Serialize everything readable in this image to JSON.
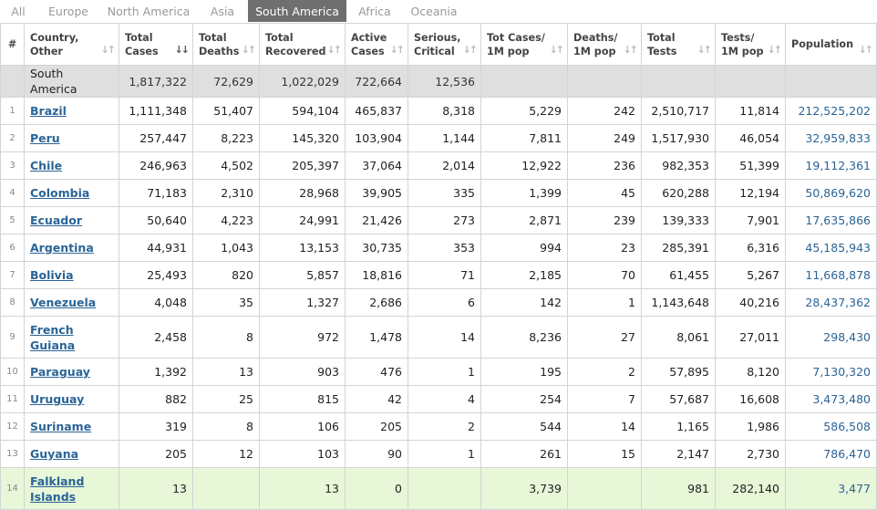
{
  "tabs": [
    {
      "label": "All",
      "name": "tab-all"
    },
    {
      "label": "Europe",
      "name": "tab-europe"
    },
    {
      "label": "North America",
      "name": "tab-north-america"
    },
    {
      "label": "Asia",
      "name": "tab-asia"
    },
    {
      "label": "South America",
      "name": "tab-south-america",
      "active": true
    },
    {
      "label": "Africa",
      "name": "tab-africa"
    },
    {
      "label": "Oceania",
      "name": "tab-oceania"
    }
  ],
  "columns": [
    {
      "lines": [
        "#"
      ],
      "sortable": false
    },
    {
      "lines": [
        "Country,",
        "Other"
      ],
      "sortable": true
    },
    {
      "lines": [
        "Total",
        "Cases"
      ],
      "sortable": true,
      "active_sort": true
    },
    {
      "lines": [
        "Total",
        "Deaths"
      ],
      "sortable": true
    },
    {
      "lines": [
        "Total",
        "Recovered"
      ],
      "sortable": true
    },
    {
      "lines": [
        "Active",
        "Cases"
      ],
      "sortable": true
    },
    {
      "lines": [
        "Serious,",
        "Critical"
      ],
      "sortable": true
    },
    {
      "lines": [
        "Tot Cases/",
        "1M pop"
      ],
      "sortable": true
    },
    {
      "lines": [
        "Deaths/",
        "1M pop"
      ],
      "sortable": true
    },
    {
      "lines": [
        "Total",
        "Tests"
      ],
      "sortable": true
    },
    {
      "lines": [
        "Tests/",
        "1M pop"
      ],
      "sortable": true
    },
    {
      "lines": [
        "Population"
      ],
      "sortable": true
    }
  ],
  "icons": {
    "sort": "sort-arrows-icon",
    "sort_active": "sort-desc-icon"
  },
  "colors": {
    "active_tab": "#6f6f6f",
    "link": "#2a6496",
    "total_row": "#dfdfdf",
    "highlight_row": "#e7f7d8"
  },
  "total_row": {
    "country": "South America",
    "total_cases": "1,817,322",
    "total_deaths": "72,629",
    "total_recovered": "1,022,029",
    "active_cases": "722,664",
    "serious": "12,536"
  },
  "rows": [
    {
      "idx": "1",
      "country": "Brazil",
      "total_cases": "1,111,348",
      "total_deaths": "51,407",
      "total_recovered": "594,104",
      "active_cases": "465,837",
      "serious": "8,318",
      "cases_per_1m": "5,229",
      "deaths_per_1m": "242",
      "total_tests": "2,510,717",
      "tests_per_1m": "11,814",
      "population": "212,525,202"
    },
    {
      "idx": "2",
      "country": "Peru",
      "total_cases": "257,447",
      "total_deaths": "8,223",
      "total_recovered": "145,320",
      "active_cases": "103,904",
      "serious": "1,144",
      "cases_per_1m": "7,811",
      "deaths_per_1m": "249",
      "total_tests": "1,517,930",
      "tests_per_1m": "46,054",
      "population": "32,959,833"
    },
    {
      "idx": "3",
      "country": "Chile",
      "total_cases": "246,963",
      "total_deaths": "4,502",
      "total_recovered": "205,397",
      "active_cases": "37,064",
      "serious": "2,014",
      "cases_per_1m": "12,922",
      "deaths_per_1m": "236",
      "total_tests": "982,353",
      "tests_per_1m": "51,399",
      "population": "19,112,361"
    },
    {
      "idx": "4",
      "country": "Colombia",
      "total_cases": "71,183",
      "total_deaths": "2,310",
      "total_recovered": "28,968",
      "active_cases": "39,905",
      "serious": "335",
      "cases_per_1m": "1,399",
      "deaths_per_1m": "45",
      "total_tests": "620,288",
      "tests_per_1m": "12,194",
      "population": "50,869,620"
    },
    {
      "idx": "5",
      "country": "Ecuador",
      "total_cases": "50,640",
      "total_deaths": "4,223",
      "total_recovered": "24,991",
      "active_cases": "21,426",
      "serious": "273",
      "cases_per_1m": "2,871",
      "deaths_per_1m": "239",
      "total_tests": "139,333",
      "tests_per_1m": "7,901",
      "population": "17,635,866"
    },
    {
      "idx": "6",
      "country": "Argentina",
      "total_cases": "44,931",
      "total_deaths": "1,043",
      "total_recovered": "13,153",
      "active_cases": "30,735",
      "serious": "353",
      "cases_per_1m": "994",
      "deaths_per_1m": "23",
      "total_tests": "285,391",
      "tests_per_1m": "6,316",
      "population": "45,185,943"
    },
    {
      "idx": "7",
      "country": "Bolivia",
      "total_cases": "25,493",
      "total_deaths": "820",
      "total_recovered": "5,857",
      "active_cases": "18,816",
      "serious": "71",
      "cases_per_1m": "2,185",
      "deaths_per_1m": "70",
      "total_tests": "61,455",
      "tests_per_1m": "5,267",
      "population": "11,668,878"
    },
    {
      "idx": "8",
      "country": "Venezuela",
      "total_cases": "4,048",
      "total_deaths": "35",
      "total_recovered": "1,327",
      "active_cases": "2,686",
      "serious": "6",
      "cases_per_1m": "142",
      "deaths_per_1m": "1",
      "total_tests": "1,143,648",
      "tests_per_1m": "40,216",
      "population": "28,437,362"
    },
    {
      "idx": "9",
      "country": "French Guiana",
      "total_cases": "2,458",
      "total_deaths": "8",
      "total_recovered": "972",
      "active_cases": "1,478",
      "serious": "14",
      "cases_per_1m": "8,236",
      "deaths_per_1m": "27",
      "total_tests": "8,061",
      "tests_per_1m": "27,011",
      "population": "298,430",
      "tall": true
    },
    {
      "idx": "10",
      "country": "Paraguay",
      "total_cases": "1,392",
      "total_deaths": "13",
      "total_recovered": "903",
      "active_cases": "476",
      "serious": "1",
      "cases_per_1m": "195",
      "deaths_per_1m": "2",
      "total_tests": "57,895",
      "tests_per_1m": "8,120",
      "population": "7,130,320"
    },
    {
      "idx": "11",
      "country": "Uruguay",
      "total_cases": "882",
      "total_deaths": "25",
      "total_recovered": "815",
      "active_cases": "42",
      "serious": "4",
      "cases_per_1m": "254",
      "deaths_per_1m": "7",
      "total_tests": "57,687",
      "tests_per_1m": "16,608",
      "population": "3,473,480"
    },
    {
      "idx": "12",
      "country": "Suriname",
      "total_cases": "319",
      "total_deaths": "8",
      "total_recovered": "106",
      "active_cases": "205",
      "serious": "2",
      "cases_per_1m": "544",
      "deaths_per_1m": "14",
      "total_tests": "1,165",
      "tests_per_1m": "1,986",
      "population": "586,508"
    },
    {
      "idx": "13",
      "country": "Guyana",
      "total_cases": "205",
      "total_deaths": "12",
      "total_recovered": "103",
      "active_cases": "90",
      "serious": "1",
      "cases_per_1m": "261",
      "deaths_per_1m": "15",
      "total_tests": "2,147",
      "tests_per_1m": "2,730",
      "population": "786,470"
    },
    {
      "idx": "14",
      "country": "Falkland Islands",
      "total_cases": "13",
      "total_deaths": "",
      "total_recovered": "13",
      "active_cases": "0",
      "serious": "",
      "cases_per_1m": "3,739",
      "deaths_per_1m": "",
      "total_tests": "981",
      "tests_per_1m": "282,140",
      "population": "3,477",
      "tall": true,
      "highlight": true
    }
  ]
}
